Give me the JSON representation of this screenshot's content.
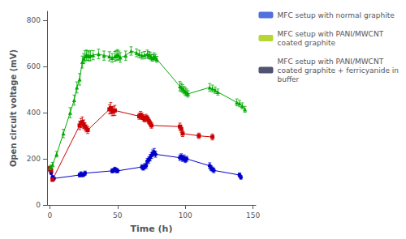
{
  "chart_data": {
    "type": "line",
    "xlabel": "Time (h)",
    "ylabel": "Open circuit voltage (mV)",
    "xlim": [
      -2,
      152
    ],
    "xticks": [
      0,
      50,
      100,
      150
    ],
    "ylim": [
      0,
      840
    ],
    "yticks": [
      0,
      200,
      400,
      600,
      800
    ],
    "grid": false,
    "legend": "right",
    "series": [
      {
        "name": "MFC setup with normal graphite",
        "color": "#0000cc",
        "marker": "circle",
        "line_style": "solid",
        "x": [
          0,
          1,
          2,
          3,
          22,
          23,
          24,
          25,
          26,
          46,
          47,
          48,
          49,
          50,
          68,
          69,
          70,
          71,
          72,
          73,
          74,
          75,
          76,
          77,
          78,
          96,
          97,
          98,
          99,
          100,
          101,
          118,
          119,
          120,
          121,
          140,
          141
        ],
        "values": [
          155,
          140,
          120,
          115,
          130,
          135,
          130,
          132,
          138,
          148,
          150,
          155,
          150,
          148,
          165,
          160,
          168,
          170,
          190,
          195,
          205,
          215,
          225,
          230,
          220,
          205,
          210,
          200,
          205,
          195,
          200,
          170,
          160,
          155,
          150,
          130,
          120
        ],
        "yerr": [
          10,
          8,
          8,
          7,
          8,
          9,
          7,
          8,
          9,
          9,
          8,
          9,
          10,
          8,
          10,
          9,
          11,
          12,
          12,
          13,
          14,
          13,
          14,
          15,
          13,
          12,
          12,
          11,
          12,
          11,
          11,
          13,
          11,
          10,
          10,
          9,
          8
        ]
      },
      {
        "name": "MFC setup with PANI/MWCNT\ncoated graphite",
        "color": "#cc0000",
        "marker": "square",
        "line_style": "solid",
        "x": [
          0,
          1,
          2,
          22,
          23,
          24,
          25,
          26,
          27,
          28,
          44,
          45,
          46,
          47,
          48,
          66,
          67,
          68,
          69,
          70,
          71,
          72,
          73,
          74,
          75,
          96,
          97,
          98,
          110,
          120
        ],
        "values": [
          158,
          150,
          110,
          345,
          355,
          360,
          350,
          340,
          332,
          325,
          415,
          420,
          405,
          408,
          410,
          385,
          390,
          385,
          378,
          372,
          380,
          375,
          365,
          355,
          345,
          340,
          330,
          310,
          300,
          295
        ],
        "yerr": [
          10,
          9,
          8,
          18,
          20,
          22,
          19,
          16,
          15,
          15,
          20,
          24,
          18,
          20,
          22,
          13,
          16,
          14,
          13,
          12,
          13,
          12,
          12,
          11,
          12,
          15,
          14,
          13,
          12,
          13
        ]
      },
      {
        "name": "MFC setup with PANI/MWCNT\ncoated graphite + ferricyanide in\nbuffer",
        "color": "#00aa00",
        "marker": "triangle",
        "line_style": "solid",
        "x": [
          0,
          1,
          2,
          5,
          10,
          15,
          18,
          20,
          22,
          24,
          25,
          26,
          27,
          28,
          29,
          30,
          32,
          36,
          40,
          44,
          46,
          48,
          49,
          50,
          51,
          52,
          56,
          60,
          64,
          66,
          68,
          70,
          72,
          73,
          74,
          75,
          76,
          77,
          78,
          79,
          96,
          97,
          98,
          99,
          100,
          101,
          102,
          118,
          120,
          122,
          124,
          138,
          140,
          142,
          144
        ],
        "values": [
          160,
          165,
          175,
          220,
          310,
          400,
          455,
          510,
          545,
          620,
          635,
          645,
          650,
          648,
          645,
          648,
          650,
          655,
          648,
          645,
          638,
          645,
          648,
          652,
          648,
          640,
          648,
          668,
          660,
          655,
          648,
          650,
          655,
          650,
          648,
          640,
          638,
          645,
          640,
          632,
          515,
          510,
          505,
          498,
          492,
          488,
          482,
          510,
          505,
          498,
          490,
          445,
          440,
          430,
          415
        ],
        "yerr": [
          8,
          8,
          10,
          12,
          18,
          22,
          22,
          24,
          25,
          26,
          22,
          24,
          22,
          21,
          20,
          22,
          20,
          21,
          20,
          20,
          19,
          21,
          22,
          22,
          20,
          21,
          20,
          18,
          17,
          16,
          15,
          16,
          17,
          16,
          15,
          14,
          14,
          15,
          13,
          13,
          20,
          18,
          17,
          16,
          17,
          15,
          14,
          17,
          15,
          14,
          13,
          15,
          14,
          13,
          13
        ]
      }
    ]
  }
}
